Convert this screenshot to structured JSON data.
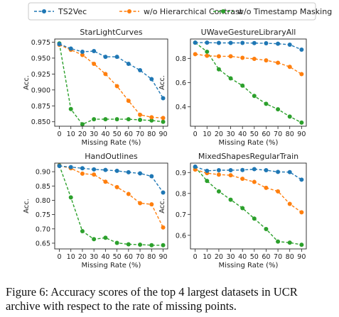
{
  "caption": "Figure 6: Accuracy scores of the top 4 largest datasets in UCR archive with respect to the rate of missing points.",
  "colors": {
    "TS2Vec": "#1f77b4",
    "w/o Hierarchical Contrast": "#ff7f0e",
    "w/o Timestamp Masking": "#2ca02c"
  },
  "chart_data": [
    {
      "type": "line",
      "title": "StarLightCurves",
      "xlabel": "Missing Rate (%)",
      "ylabel": "Acc.",
      "x": [
        0,
        10,
        20,
        30,
        40,
        50,
        60,
        70,
        80,
        90
      ],
      "ylim": [
        0.843,
        0.98
      ],
      "yticks": [
        0.85,
        0.875,
        0.9,
        0.925,
        0.95,
        0.975
      ],
      "ytick_labels": [
        "0.850",
        "0.875",
        "0.900",
        "0.925",
        "0.950",
        "0.975"
      ],
      "series": [
        {
          "name": "TS2Vec",
          "values": [
            0.972,
            0.965,
            0.96,
            0.961,
            0.952,
            0.952,
            0.941,
            0.931,
            0.917,
            0.887
          ]
        },
        {
          "name": "w/o Hierarchical Contrast",
          "values": [
            0.971,
            0.963,
            0.955,
            0.941,
            0.925,
            0.906,
            0.883,
            0.861,
            0.857,
            0.856
          ]
        },
        {
          "name": "w/o Timestamp Masking",
          "values": [
            0.973,
            0.87,
            0.846,
            0.854,
            0.854,
            0.854,
            0.854,
            0.853,
            0.852,
            0.85
          ]
        }
      ]
    },
    {
      "type": "line",
      "title": "UWaveGestureLibraryAll",
      "xlabel": "Missing Rate (%)",
      "ylabel": "Acc.",
      "x": [
        0,
        10,
        20,
        30,
        40,
        50,
        60,
        70,
        80,
        90
      ],
      "ylim": [
        0.24,
        0.96
      ],
      "yticks": [
        0.4,
        0.6,
        0.8
      ],
      "ytick_labels": [
        "0.4",
        "0.6",
        "0.8"
      ],
      "series": [
        {
          "name": "TS2Vec",
          "values": [
            0.93,
            0.93,
            0.928,
            0.928,
            0.928,
            0.926,
            0.925,
            0.921,
            0.913,
            0.872
          ]
        },
        {
          "name": "w/o Hierarchical Contrast",
          "values": [
            0.835,
            0.822,
            0.817,
            0.817,
            0.805,
            0.796,
            0.784,
            0.764,
            0.73,
            0.67
          ]
        },
        {
          "name": "w/o Timestamp Masking",
          "values": [
            0.93,
            0.855,
            0.71,
            0.635,
            0.575,
            0.49,
            0.425,
            0.38,
            0.32,
            0.27
          ]
        }
      ]
    },
    {
      "type": "line",
      "title": "HandOutlines",
      "xlabel": "Missing Rate (%)",
      "ylabel": "Acc.",
      "x": [
        0,
        10,
        20,
        30,
        40,
        50,
        60,
        70,
        80,
        90
      ],
      "ylim": [
        0.63,
        0.93
      ],
      "yticks": [
        0.65,
        0.7,
        0.75,
        0.8,
        0.85,
        0.9
      ],
      "ytick_labels": [
        "0.65",
        "0.70",
        "0.75",
        "0.80",
        "0.85",
        "0.90"
      ],
      "series": [
        {
          "name": "TS2Vec",
          "values": [
            0.92,
            0.916,
            0.912,
            0.908,
            0.906,
            0.903,
            0.898,
            0.894,
            0.884,
            0.827
          ]
        },
        {
          "name": "w/o Hierarchical Contrast",
          "values": [
            0.921,
            0.912,
            0.893,
            0.89,
            0.865,
            0.846,
            0.822,
            0.79,
            0.786,
            0.705
          ]
        },
        {
          "name": "w/o Timestamp Masking",
          "values": [
            0.922,
            0.81,
            0.692,
            0.664,
            0.669,
            0.651,
            0.646,
            0.645,
            0.643,
            0.643
          ]
        }
      ]
    },
    {
      "type": "line",
      "title": "MixedShapesRegularTrain",
      "xlabel": "Missing Rate (%)",
      "ylabel": "Acc.",
      "x": [
        0,
        10,
        20,
        30,
        40,
        50,
        60,
        70,
        80,
        90
      ],
      "ylim": [
        0.535,
        0.945
      ],
      "yticks": [
        0.6,
        0.7,
        0.8,
        0.9
      ],
      "ytick_labels": [
        "0.6",
        "0.7",
        "0.8",
        "0.9"
      ],
      "series": [
        {
          "name": "TS2Vec",
          "values": [
            0.928,
            0.908,
            0.911,
            0.911,
            0.912,
            0.916,
            0.911,
            0.903,
            0.902,
            0.866
          ]
        },
        {
          "name": "w/o Hierarchical Contrast",
          "values": [
            0.914,
            0.897,
            0.89,
            0.887,
            0.87,
            0.855,
            0.827,
            0.81,
            0.75,
            0.71
          ]
        },
        {
          "name": "w/o Timestamp Masking",
          "values": [
            0.926,
            0.86,
            0.81,
            0.77,
            0.73,
            0.68,
            0.63,
            0.57,
            0.565,
            0.555
          ]
        }
      ]
    }
  ],
  "legend": {
    "placement": "top",
    "entries": [
      "TS2Vec",
      "w/o Hierarchical Contrast",
      "w/o Timestamp Masking"
    ]
  }
}
